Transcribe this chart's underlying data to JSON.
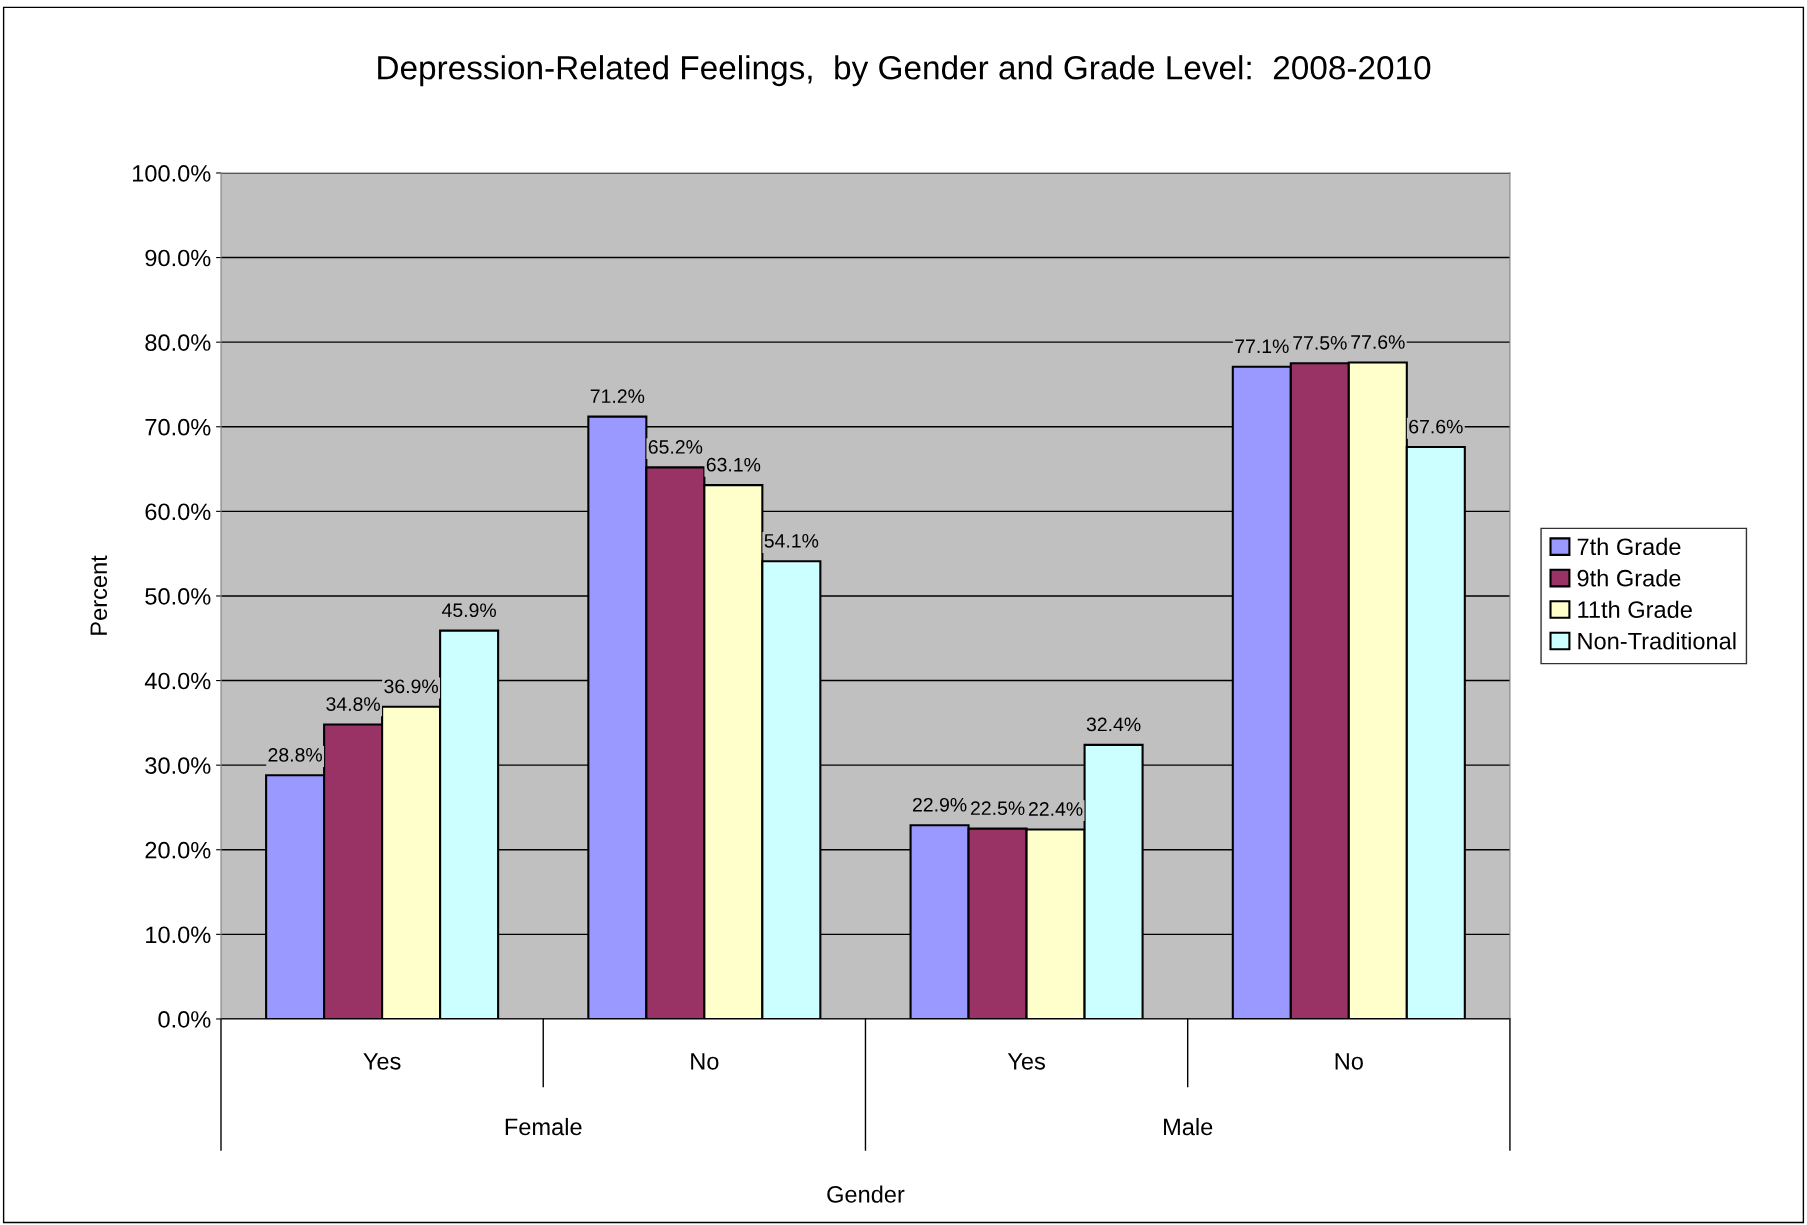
{
  "chart_data": {
    "type": "bar",
    "title": "Depression-Related Feelings,  by Gender and Grade Level:  2008-2010",
    "xlabel": "Gender",
    "ylabel": "Percent",
    "categories": [
      "Yes",
      "No",
      "Yes",
      "No"
    ],
    "annotations": [
      "Female",
      "Male"
    ],
    "series": [
      {
        "name": "7th Grade",
        "color": "#9999ff",
        "values": [
          28.8,
          71.2,
          22.9,
          77.1
        ],
        "value_labels": [
          "28.8%",
          "71.2%",
          "22.9%",
          "77.1%"
        ]
      },
      {
        "name": "9th Grade",
        "color": "#993366",
        "values": [
          34.8,
          65.2,
          22.5,
          77.5
        ],
        "value_labels": [
          "34.8%",
          "65.2%",
          "22.5%",
          "77.5%"
        ]
      },
      {
        "name": "11th Grade",
        "color": "#ffffcc",
        "values": [
          36.9,
          63.1,
          22.4,
          77.6
        ],
        "value_labels": [
          "36.9%",
          "63.1%",
          "22.4%",
          "77.6%"
        ]
      },
      {
        "name": "Non-Traditional",
        "color": "#ccffff",
        "values": [
          45.9,
          54.1,
          32.4,
          67.6
        ],
        "value_labels": [
          "45.9%",
          "54.1%",
          "32.4%",
          "67.6%"
        ]
      }
    ],
    "ylim": [
      0,
      100
    ],
    "yticks": [
      {
        "value": 0,
        "label": "0.0%"
      },
      {
        "value": 10,
        "label": "10.0%"
      },
      {
        "value": 20,
        "label": "20.0%"
      },
      {
        "value": 30,
        "label": "30.0%"
      },
      {
        "value": 40,
        "label": "40.0%"
      },
      {
        "value": 50,
        "label": "50.0%"
      },
      {
        "value": 60,
        "label": "60.0%"
      },
      {
        "value": 70,
        "label": "70.0%"
      },
      {
        "value": 80,
        "label": "80.0%"
      },
      {
        "value": 90,
        "label": "90.0%"
      },
      {
        "value": 100,
        "label": "100.0%"
      }
    ],
    "grid": "y",
    "legend": "right"
  }
}
